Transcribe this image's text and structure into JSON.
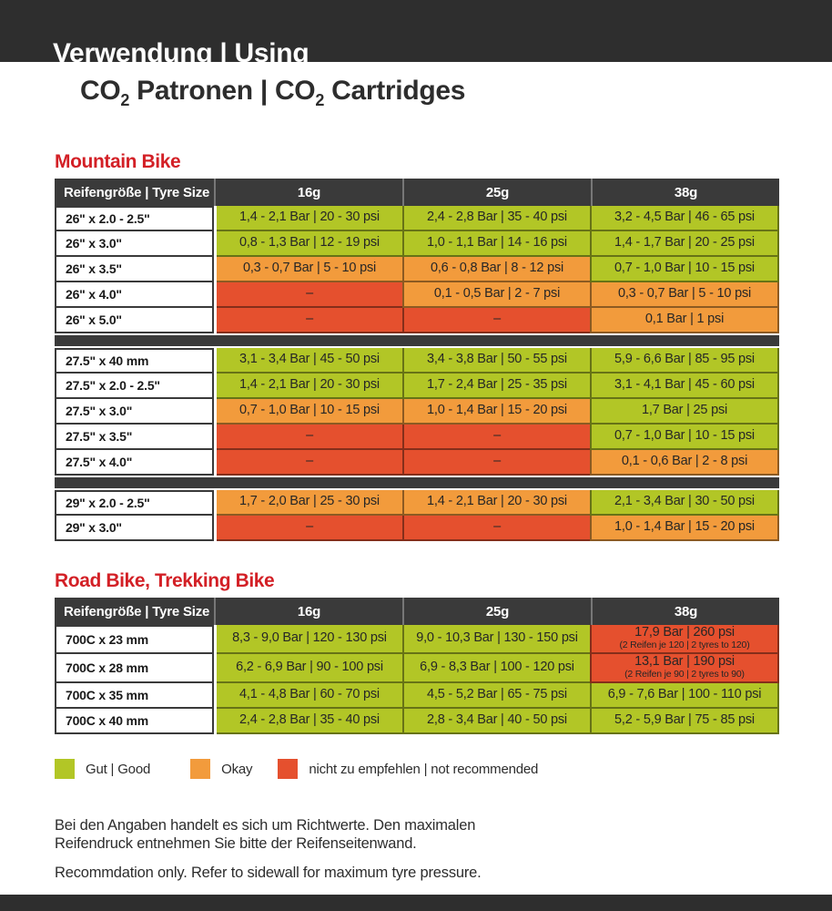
{
  "header": {
    "title_line1": "Verwendung | Using",
    "subtitle": {
      "p1": "CO",
      "s1": "2",
      "p2": " Patronen | CO",
      "s2": "2",
      "p3": " Cartridges"
    }
  },
  "columns": {
    "tyre": "Reifengröße | Tyre Size",
    "c16": "16g",
    "c25": "25g",
    "c38": "38g"
  },
  "mountain": {
    "heading": "Mountain Bike",
    "groups": [
      {
        "rows": [
          {
            "size": "26\" x 2.0 - 2.5\"",
            "cells": [
              {
                "t": "1,4 - 2,1 Bar | 20 - 30 psi",
                "c": "green"
              },
              {
                "t": "2,4 - 2,8 Bar | 35 - 40 psi",
                "c": "green"
              },
              {
                "t": "3,2 - 4,5 Bar | 46 - 65 psi",
                "c": "green"
              }
            ]
          },
          {
            "size": "26\" x 3.0\"",
            "cells": [
              {
                "t": "0,8 - 1,3 Bar | 12 - 19 psi",
                "c": "green"
              },
              {
                "t": "1,0 - 1,1 Bar | 14 - 16 psi",
                "c": "green"
              },
              {
                "t": "1,4 - 1,7 Bar | 20 - 25 psi",
                "c": "green"
              }
            ]
          },
          {
            "size": "26\" x 3.5\"",
            "cells": [
              {
                "t": "0,3 - 0,7 Bar | 5 - 10 psi",
                "c": "orange"
              },
              {
                "t": "0,6 - 0,8 Bar | 8 - 12 psi",
                "c": "orange"
              },
              {
                "t": "0,7 - 1,0 Bar | 10 - 15 psi",
                "c": "green"
              }
            ]
          },
          {
            "size": "26\" x 4.0\"",
            "cells": [
              {
                "t": "–",
                "c": "red"
              },
              {
                "t": "0,1 - 0,5 Bar | 2 - 7 psi",
                "c": "orange"
              },
              {
                "t": "0,3 - 0,7 Bar | 5 - 10 psi",
                "c": "orange"
              }
            ]
          },
          {
            "size": "26\" x 5.0\"",
            "cells": [
              {
                "t": "–",
                "c": "red"
              },
              {
                "t": "–",
                "c": "red"
              },
              {
                "t": "0,1 Bar | 1 psi",
                "c": "orange"
              }
            ]
          }
        ]
      },
      {
        "rows": [
          {
            "size": "27.5\" x 40 mm",
            "cells": [
              {
                "t": "3,1 - 3,4 Bar | 45 - 50 psi",
                "c": "green"
              },
              {
                "t": "3,4 - 3,8 Bar | 50 - 55 psi",
                "c": "green"
              },
              {
                "t": "5,9 - 6,6 Bar | 85 - 95 psi",
                "c": "green"
              }
            ]
          },
          {
            "size": "27.5\" x 2.0 - 2.5\"",
            "cells": [
              {
                "t": "1,4 - 2,1 Bar | 20 - 30 psi",
                "c": "green"
              },
              {
                "t": "1,7 - 2,4 Bar | 25 - 35 psi",
                "c": "green"
              },
              {
                "t": "3,1 - 4,1 Bar | 45 - 60 psi",
                "c": "green"
              }
            ]
          },
          {
            "size": "27.5\" x 3.0\"",
            "cells": [
              {
                "t": "0,7 - 1,0 Bar | 10 - 15 psi",
                "c": "orange"
              },
              {
                "t": "1,0 - 1,4 Bar | 15 - 20 psi",
                "c": "orange"
              },
              {
                "t": "1,7 Bar | 25 psi",
                "c": "green"
              }
            ]
          },
          {
            "size": "27.5\" x 3.5\"",
            "cells": [
              {
                "t": "–",
                "c": "red"
              },
              {
                "t": "–",
                "c": "red"
              },
              {
                "t": "0,7 - 1,0 Bar | 10 - 15 psi",
                "c": "green"
              }
            ]
          },
          {
            "size": "27.5\" x 4.0\"",
            "cells": [
              {
                "t": "–",
                "c": "red"
              },
              {
                "t": "–",
                "c": "red"
              },
              {
                "t": "0,1 - 0,6 Bar | 2 - 8 psi",
                "c": "orange"
              }
            ]
          }
        ]
      },
      {
        "rows": [
          {
            "size": "29\" x 2.0 - 2.5\"",
            "cells": [
              {
                "t": "1,7 - 2,0 Bar | 25 - 30 psi",
                "c": "orange"
              },
              {
                "t": "1,4 - 2,1 Bar | 20 - 30 psi",
                "c": "orange"
              },
              {
                "t": "2,1 - 3,4 Bar | 30 - 50 psi",
                "c": "green"
              }
            ]
          },
          {
            "size": "29\" x 3.0\"",
            "cells": [
              {
                "t": "–",
                "c": "red"
              },
              {
                "t": "–",
                "c": "red"
              },
              {
                "t": "1,0 - 1,4 Bar | 15 - 20 psi",
                "c": "orange"
              }
            ]
          }
        ]
      }
    ]
  },
  "road": {
    "heading": "Road Bike, Trekking Bike",
    "groups": [
      {
        "rows": [
          {
            "size": "700C x 23 mm",
            "cells": [
              {
                "t": "8,3 - 9,0 Bar | 120 - 130 psi",
                "c": "green"
              },
              {
                "t": "9,0 - 10,3 Bar | 130 - 150 psi",
                "c": "green"
              },
              {
                "t": "17,9 Bar | 260 psi",
                "sub": "(2 Reifen je 120 | 2 tyres to 120)",
                "c": "red"
              }
            ]
          },
          {
            "size": "700C x 28 mm",
            "cells": [
              {
                "t": "6,2 - 6,9 Bar | 90 - 100 psi",
                "c": "green"
              },
              {
                "t": "6,9 - 8,3 Bar | 100 - 120 psi",
                "c": "green"
              },
              {
                "t": "13,1 Bar | 190 psi",
                "sub": "(2 Reifen je 90 | 2 tyres to 90)",
                "c": "red"
              }
            ]
          },
          {
            "size": "700C x 35 mm",
            "cells": [
              {
                "t": "4,1 - 4,8 Bar | 60 - 70 psi",
                "c": "green"
              },
              {
                "t": "4,5 - 5,2 Bar | 65 - 75 psi",
                "c": "green"
              },
              {
                "t": "6,9 - 7,6 Bar | 100 - 110 psi",
                "c": "green"
              }
            ]
          },
          {
            "size": "700C x 40 mm",
            "cells": [
              {
                "t": "2,4 - 2,8 Bar | 35 - 40 psi",
                "c": "green"
              },
              {
                "t": "2,8 - 3,4 Bar | 40 - 50 psi",
                "c": "green"
              },
              {
                "t": "5,2 - 5,9 Bar | 75 - 85 psi",
                "c": "green"
              }
            ]
          }
        ]
      }
    ]
  },
  "legend": {
    "items": [
      {
        "label": "Gut | Good",
        "color": "green"
      },
      {
        "label": "Okay",
        "color": "orange"
      },
      {
        "label": "nicht zu empfehlen | not recommended",
        "color": "red"
      }
    ]
  },
  "notes": {
    "de": "Bei den Angaben handelt es sich um Richtwerte. Den maximalen\nReifendruck entnehmen Sie bitte der Reifenseitenwand.",
    "en": "Recommdation only. Refer to sidewall for maximum tyre pressure."
  },
  "colors": {
    "green": "#b2c626",
    "orange": "#f29b3c",
    "red": "#e5502e",
    "dark_band": "#2e2e2e",
    "table_dark": "#3a3a3a",
    "heading_red": "#d32026"
  }
}
